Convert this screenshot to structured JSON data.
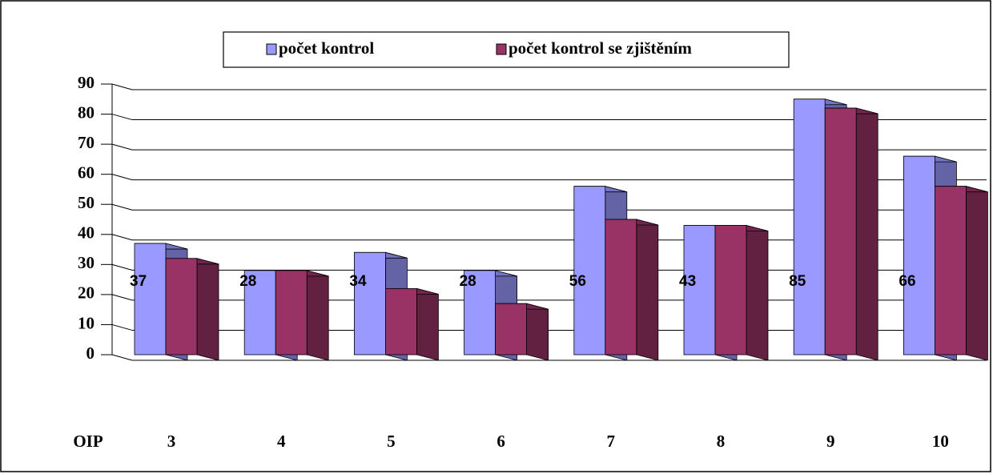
{
  "chart_data": {
    "type": "bar3d",
    "x_label": "OIP",
    "categories": [
      "3",
      "4",
      "5",
      "6",
      "7",
      "8",
      "9",
      "10"
    ],
    "series": [
      {
        "name": "počet kontrol",
        "color": "#9999ff",
        "values": [
          37,
          28,
          34,
          28,
          56,
          43,
          85,
          66
        ]
      },
      {
        "name": "počet kontrol se zjištěním",
        "color": "#993366",
        "values": [
          32,
          28,
          22,
          17,
          45,
          43,
          82,
          56
        ]
      }
    ],
    "data_labels_series": 0,
    "ylim": [
      0,
      90
    ],
    "yticks": [
      0,
      10,
      20,
      30,
      40,
      50,
      60,
      70,
      80,
      90
    ],
    "grid": true
  }
}
